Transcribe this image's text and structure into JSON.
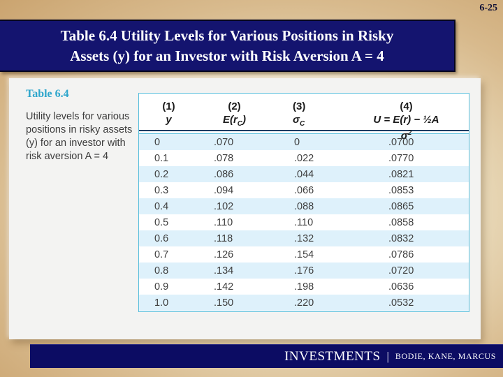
{
  "slide": {
    "number": "6-25",
    "title_line1": "Table 6.4 Utility Levels for Various Positions in Risky",
    "title_line2": "Assets (y) for an Investor with Risk Aversion A = 4"
  },
  "sidebar": {
    "heading": "Table 6.4",
    "caption": "Utility levels for various positions in risky assets (y) for an investor with risk aversion A = 4"
  },
  "chart_data": {
    "type": "table",
    "title": "Table 6.4 Utility levels for various positions in risky assets (y) for an investor with risk aversion A = 4",
    "columns": [
      {
        "num": "(1)",
        "symbol": "y"
      },
      {
        "num": "(2)",
        "symbol_pre": "E(r",
        "symbol_sub": "C",
        "symbol_post": ")"
      },
      {
        "num": "(3)",
        "symbol_pre": "σ",
        "symbol_sub": "C"
      },
      {
        "num": "(4)",
        "symbol_pre": "U = E(r) − ½A σ",
        "symbol_sup": "2"
      }
    ],
    "rows": [
      [
        "0",
        ".070",
        "0",
        ".0700"
      ],
      [
        "0.1",
        ".078",
        ".022",
        ".0770"
      ],
      [
        "0.2",
        ".086",
        ".044",
        ".0821"
      ],
      [
        "0.3",
        ".094",
        ".066",
        ".0853"
      ],
      [
        "0.4",
        ".102",
        ".088",
        ".0865"
      ],
      [
        "0.5",
        ".110",
        ".110",
        ".0858"
      ],
      [
        "0.6",
        ".118",
        ".132",
        ".0832"
      ],
      [
        "0.7",
        ".126",
        ".154",
        ".0786"
      ],
      [
        "0.8",
        ".134",
        ".176",
        ".0720"
      ],
      [
        "0.9",
        ".142",
        ".198",
        ".0636"
      ],
      [
        "1.0",
        ".150",
        ".220",
        ".0532"
      ]
    ]
  },
  "footer": {
    "brand": "INVESTMENTS",
    "divider": "|",
    "authors": "BODIE, KANE, MARCUS"
  },
  "colors": {
    "background_tan": "#c9a26d",
    "background_light": "#f7f1e3",
    "title_navy": "#14146f",
    "footer_navy": "#0c0c63",
    "accent_teal": "#2ea6cc",
    "table_border_teal": "#58bedc",
    "row_stripe_blue": "#def1fb",
    "header_rule_navy": "#1d3d63"
  }
}
